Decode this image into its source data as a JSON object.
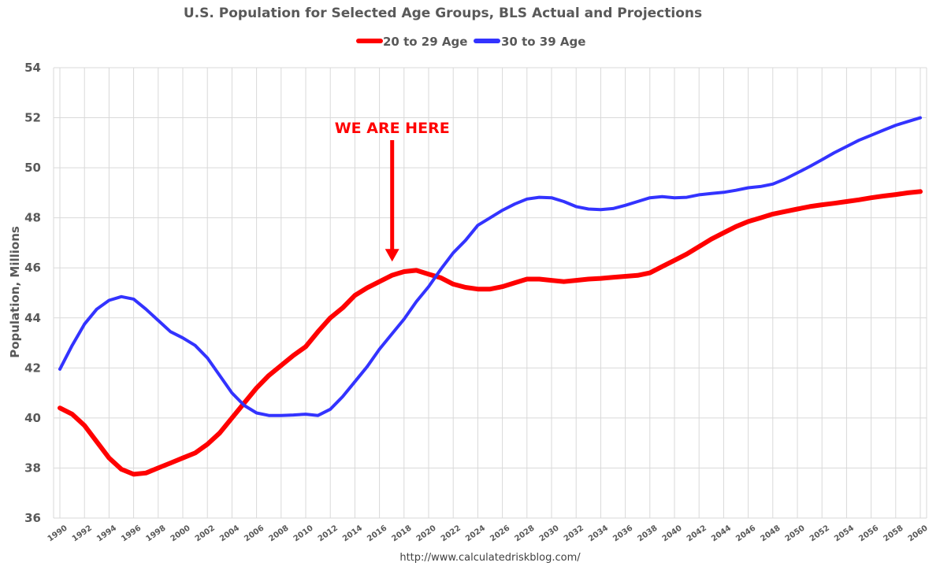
{
  "chart_data": {
    "type": "line",
    "title": "U.S. Population for Selected Age Groups, BLS Actual and Projections",
    "xlabel": "",
    "ylabel": "Population, Millions",
    "ylim": [
      36,
      54
    ],
    "yticks": [
      "36",
      "38",
      "40",
      "42",
      "44",
      "46",
      "48",
      "50",
      "52",
      "54"
    ],
    "xlim": [
      1990,
      2060
    ],
    "xticks": [
      "1990",
      "1992",
      "1994",
      "1996",
      "1998",
      "2000",
      "2002",
      "2004",
      "2006",
      "2008",
      "2010",
      "2012",
      "2014",
      "2016",
      "2018",
      "2020",
      "2022",
      "2024",
      "2026",
      "2028",
      "2030",
      "2032",
      "2034",
      "2036",
      "2038",
      "2040",
      "2042",
      "2044",
      "2046",
      "2048",
      "2050",
      "2052",
      "2054",
      "2056",
      "2058",
      "2060"
    ],
    "grid": true,
    "legend_position": "top-center",
    "colors": {
      "series_20_29": "#ff0000",
      "series_30_39": "#3333ff",
      "grid": "#d9d9d9",
      "text": "#595959"
    },
    "x": [
      1990,
      1991,
      1992,
      1993,
      1994,
      1995,
      1996,
      1997,
      1998,
      1999,
      2000,
      2001,
      2002,
      2003,
      2004,
      2005,
      2006,
      2007,
      2008,
      2009,
      2010,
      2011,
      2012,
      2013,
      2014,
      2015,
      2016,
      2017,
      2018,
      2019,
      2020,
      2021,
      2022,
      2023,
      2024,
      2025,
      2026,
      2027,
      2028,
      2029,
      2030,
      2031,
      2032,
      2033,
      2034,
      2035,
      2036,
      2037,
      2038,
      2039,
      2040,
      2041,
      2042,
      2043,
      2044,
      2045,
      2046,
      2047,
      2048,
      2049,
      2050,
      2051,
      2052,
      2053,
      2054,
      2055,
      2056,
      2057,
      2058,
      2059,
      2060
    ],
    "series": [
      {
        "name": "20 to 29 Age",
        "values": [
          40.4,
          40.15,
          39.7,
          39.05,
          38.4,
          37.95,
          37.75,
          37.8,
          38.0,
          38.2,
          38.4,
          38.6,
          38.95,
          39.4,
          40.0,
          40.6,
          41.2,
          41.7,
          42.1,
          42.5,
          42.85,
          43.45,
          44.0,
          44.4,
          44.9,
          45.2,
          45.45,
          45.7,
          45.85,
          45.9,
          45.75,
          45.6,
          45.35,
          45.22,
          45.15,
          45.15,
          45.25,
          45.4,
          45.55,
          45.55,
          45.5,
          45.45,
          45.5,
          45.55,
          45.58,
          45.62,
          45.66,
          45.7,
          45.8,
          46.05,
          46.3,
          46.55,
          46.85,
          47.15,
          47.4,
          47.65,
          47.85,
          48.0,
          48.15,
          48.25,
          48.35,
          48.45,
          48.52,
          48.58,
          48.65,
          48.72,
          48.8,
          48.87,
          48.93,
          49.0,
          49.05
        ]
      },
      {
        "name": "30 to 39 Age",
        "values": [
          41.95,
          42.9,
          43.75,
          44.35,
          44.7,
          44.85,
          44.75,
          44.35,
          43.9,
          43.45,
          43.2,
          42.9,
          42.4,
          41.7,
          41.0,
          40.5,
          40.2,
          40.1,
          40.1,
          40.12,
          40.15,
          40.1,
          40.35,
          40.85,
          41.45,
          42.05,
          42.75,
          43.35,
          43.95,
          44.65,
          45.25,
          45.95,
          46.6,
          47.1,
          47.7,
          48.0,
          48.3,
          48.55,
          48.75,
          48.82,
          48.8,
          48.65,
          48.45,
          48.35,
          48.33,
          48.37,
          48.5,
          48.65,
          48.8,
          48.85,
          48.8,
          48.82,
          48.92,
          48.97,
          49.02,
          49.1,
          49.2,
          49.25,
          49.35,
          49.55,
          49.8,
          50.05,
          50.32,
          50.6,
          50.85,
          51.1,
          51.3,
          51.5,
          51.7,
          51.85,
          52.0
        ]
      }
    ],
    "annotations": [
      {
        "text": "WE ARE HERE",
        "color": "#ff0000",
        "arrow_target_x": 2017,
        "arrow_target_y": 46.0
      }
    ],
    "source": "http://www.calculatedriskblog.com/"
  }
}
